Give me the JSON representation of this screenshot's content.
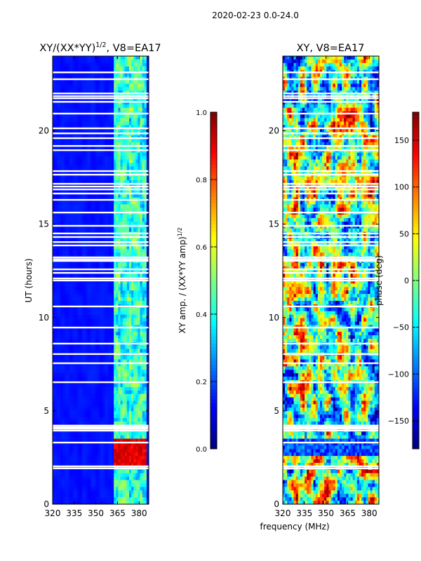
{
  "suptitle": "2020-02-23 0.0-24.0",
  "xlabel": "frequency (MHz)",
  "chart_data": [
    {
      "type": "heatmap",
      "title": "XY/(XX*YY)^{1/2}, V8=EA17",
      "title_main": "XY/(XX*YY)",
      "title_sup": "1/2",
      "title_tail": ", V8=EA17",
      "xlabel": "frequency (MHz)",
      "ylabel": "UT (hours)",
      "xlim": [
        320,
        386.7
      ],
      "ylim": [
        0,
        24
      ],
      "xticks": [
        "320",
        "335",
        "350",
        "365",
        "380"
      ],
      "xtick_values": [
        320,
        335,
        350,
        365,
        380
      ],
      "yticks": [
        "0",
        "5",
        "10",
        "15",
        "20"
      ],
      "ytick_values": [
        0,
        5,
        10,
        15,
        20
      ],
      "colormap": "jet",
      "clim": [
        0,
        1
      ],
      "colorbar_label": "XY amp. / (XX*YY amp)",
      "colorbar_label_sup": "1/2",
      "colorbar_ticks": [
        "0.0",
        "0.2",
        "0.4",
        "0.6",
        "0.8",
        "1.0"
      ],
      "colorbar_tick_values": [
        0,
        0.2,
        0.4,
        0.6,
        0.8,
        1.0
      ],
      "background_level": 0.12,
      "active_band_mhz": [
        362,
        385
      ],
      "active_level": 0.4,
      "strong_hours": [
        2.0,
        3.6
      ],
      "strong_level": 0.85
    },
    {
      "type": "heatmap",
      "title": "XY, V8=EA17",
      "xlabel": "frequency (MHz)",
      "ylabel": "phase (deg)",
      "xlim": [
        320,
        386.7
      ],
      "ylim": [
        0,
        24
      ],
      "xticks": [
        "320",
        "335",
        "350",
        "365",
        "380"
      ],
      "xtick_values": [
        320,
        335,
        350,
        365,
        380
      ],
      "yticks": [
        "0",
        "5",
        "10",
        "15",
        "20"
      ],
      "ytick_values": [
        0,
        5,
        10,
        15,
        20
      ],
      "colormap": "jet",
      "clim": [
        -180,
        180
      ],
      "colorbar_label": "phase (deg)",
      "colorbar_ticks": [
        "−150",
        "−100",
        "−50",
        "0",
        "50",
        "100",
        "150"
      ],
      "colorbar_tick_values": [
        -150,
        -100,
        -50,
        0,
        50,
        100,
        150
      ]
    }
  ],
  "flagged_hours": [
    23.13,
    22.76,
    22.0,
    21.85,
    21.74,
    21.55,
    20.92,
    20.13,
    19.86,
    19.6,
    19.19,
    18.96,
    17.84,
    17.65,
    17.16,
    17.01,
    16.86,
    16.64,
    16.3,
    15.62,
    14.91,
    14.5,
    14.31,
    14.04,
    13.86,
    13.03,
    13.12,
    13.22,
    12.58,
    12.39,
    11.98,
    12.09,
    10.59,
    9.46,
    8.6,
    8.04,
    7.55,
    6.53,
    3.94,
    4.04,
    4.12,
    4.21,
    3.3,
    1.92,
    2.03
  ]
}
